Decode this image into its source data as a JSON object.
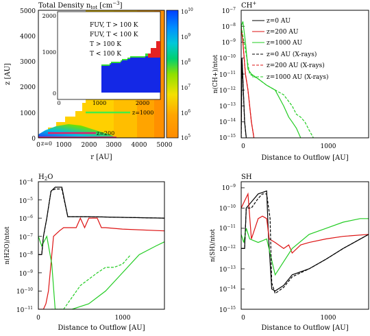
{
  "chart_data": [
    {
      "type": "heatmap",
      "title": "Total Density n",
      "title_sub": "tot",
      "title_unit": " [cm",
      "title_exp": "−3",
      "title_end": "]",
      "xlabel": "r [AU]",
      "ylabel": "z [AU]",
      "xlim": [
        0,
        5000
      ],
      "ylim": [
        0,
        5000
      ],
      "xticks": [
        "0",
        "1000",
        "2000",
        "3000",
        "4000",
        "5000"
      ],
      "yticks": [
        "0",
        "1000",
        "2000",
        "3000",
        "4000",
        "5000"
      ],
      "colorbar": {
        "scale": "log",
        "range": [
          100000,
          10000000000
        ],
        "ticks": [
          "10",
          "10",
          "10",
          "10",
          "10",
          "10"
        ],
        "tick_exps": [
          "5",
          "6",
          "7",
          "8",
          "9",
          "10"
        ]
      },
      "annotations": [
        "z=1000",
        "z=200",
        "z=0"
      ],
      "inset": {
        "xticks": [
          "0",
          "1000",
          "2000"
        ],
        "yticks": [
          "0",
          "1000",
          "2000"
        ],
        "legend": [
          {
            "label": "FUV, T > 100 K",
            "color": "#e02020"
          },
          {
            "label": "FUV, T < 100 K",
            "color": "#33dd33"
          },
          {
            "label": "T > 100 K",
            "color": "#f08a00"
          },
          {
            "label": "T < 100 K",
            "color": "#1020e0"
          }
        ]
      },
      "grid": false
    },
    {
      "type": "line",
      "title": "CH",
      "title_sup": "+",
      "xlabel": "Distance to Outflow [AU]",
      "ylabel": "n(CH+)/ntot",
      "yscale": "log",
      "xlim": [
        0,
        1500
      ],
      "ylim": [
        1e-15,
        1e-07
      ],
      "xticks": [
        "0",
        "1000"
      ],
      "yticks": [
        "10",
        "10",
        "10",
        "10",
        "10",
        "10",
        "10",
        "10",
        "10"
      ],
      "ytick_exps": [
        "−7",
        "−8",
        "−9",
        "−10",
        "−11",
        "−12",
        "−13",
        "−14",
        "−15"
      ],
      "legend_position": "top-right",
      "series": [
        {
          "name": "z=0 AU",
          "color": "#000000",
          "dash": false,
          "x": [
            0,
            10,
            20,
            40,
            60
          ],
          "y": [
            1e-15,
            1e-10,
            5e-12,
            1e-14,
            1e-15
          ]
        },
        {
          "name": "z=200 AU",
          "color": "#dd1111",
          "dash": false,
          "x": [
            0,
            20,
            50,
            80,
            120,
            150
          ],
          "y": [
            1e-08,
            1e-09,
            1e-11,
            1e-12,
            1e-14,
            1e-15
          ]
        },
        {
          "name": "z=1000 AU",
          "color": "#22cc22",
          "dash": false,
          "x": [
            0,
            20,
            50,
            80,
            120,
            200,
            300,
            400,
            500,
            560,
            600,
            650,
            700
          ],
          "y": [
            1e-08,
            2e-08,
            1e-09,
            2e-11,
            1e-11,
            5e-12,
            2e-12,
            1e-12,
            1e-13,
            2e-14,
            1e-14,
            4e-15,
            1e-15
          ]
        },
        {
          "name": "z=0 AU (X-rays)",
          "color": "#000000",
          "dash": true,
          "x": [
            0,
            10,
            20,
            40,
            60
          ],
          "y": [
            1e-15,
            8e-11,
            4e-12,
            1e-14,
            1e-15
          ]
        },
        {
          "name": "z=200 AU (X-rays)",
          "color": "#dd1111",
          "dash": true,
          "x": [
            0,
            20,
            50,
            80,
            120,
            150
          ],
          "y": [
            1e-08,
            1e-09,
            1e-11,
            1e-12,
            1e-14,
            1e-15
          ]
        },
        {
          "name": "z=1000 AU (X-rays)",
          "color": "#22cc22",
          "dash": true,
          "x": [
            0,
            100,
            200,
            300,
            400,
            500,
            600,
            650,
            700,
            750,
            800,
            850
          ],
          "y": [
            1e-08,
            1e-11,
            5e-12,
            2e-12,
            1e-12,
            5e-13,
            1e-13,
            3e-14,
            2e-14,
            1e-14,
            3e-15,
            1e-15
          ]
        }
      ],
      "grid": false
    },
    {
      "type": "line",
      "title": "H",
      "title_sub": "2",
      "title_end": "O",
      "xlabel": "Distance to Outflow [AU]",
      "ylabel": "n(H2O)/ntot",
      "yscale": "log",
      "xlim": [
        0,
        1500
      ],
      "ylim": [
        1e-11,
        0.0001
      ],
      "xticks": [
        "0",
        "1000"
      ],
      "yticks": [
        "10",
        "10",
        "10",
        "10",
        "10",
        "10",
        "10",
        "10"
      ],
      "ytick_exps": [
        "−4",
        "−5",
        "−6",
        "−7",
        "−8",
        "−9",
        "−10",
        "−11"
      ],
      "series": [
        {
          "name": "z=0 AU",
          "color": "#000000",
          "dash": false,
          "x": [
            0,
            40,
            60,
            100,
            150,
            200,
            280,
            350,
            600,
            1000,
            1500
          ],
          "y": [
            1e-08,
            1e-08,
            1e-07,
            1e-06,
            3e-05,
            5e-05,
            5e-05,
            1.2e-06,
            1.2e-06,
            1.1e-06,
            1e-06
          ]
        },
        {
          "name": "z=200 AU",
          "color": "#dd1111",
          "dash": false,
          "x": [
            0,
            60,
            90,
            120,
            180,
            250,
            300,
            350,
            450,
            500,
            550,
            600,
            700,
            750,
            800,
            1000,
            1500
          ],
          "y": [
            1e-11,
            1e-11,
            2e-11,
            1e-10,
            1e-07,
            2e-07,
            3e-07,
            3e-07,
            3e-07,
            1e-06,
            3e-07,
            1e-06,
            1e-06,
            3e-07,
            3e-07,
            2.5e-07,
            2e-07
          ]
        },
        {
          "name": "z=1000 AU",
          "color": "#22cc22",
          "dash": false,
          "x": [
            0,
            40,
            100,
            160,
            200,
            400,
            600,
            800,
            1000,
            1200,
            1400,
            1500
          ],
          "y": [
            1e-07,
            3e-08,
            1e-07,
            3e-09,
            1e-11,
            1e-11,
            2e-11,
            1e-10,
            1e-09,
            1e-08,
            3e-08,
            5e-08
          ]
        },
        {
          "name": "z=0 AU (X-rays)",
          "color": "#000000",
          "dash": true,
          "x": [
            0,
            40,
            60,
            100,
            150,
            200,
            280,
            350,
            600,
            1000,
            1500
          ],
          "y": [
            1e-08,
            1e-08,
            1e-07,
            1e-06,
            3e-05,
            4e-05,
            4e-05,
            1.2e-06,
            1.2e-06,
            1.1e-06,
            1e-06
          ]
        },
        {
          "name": "z=1000 AU (X-rays)",
          "color": "#22cc22",
          "dash": true,
          "x": [
            150,
            300,
            500,
            700,
            800,
            900,
            1000,
            1100
          ],
          "y": [
            1e-11,
            1e-11,
            2e-10,
            1e-09,
            2e-09,
            2e-09,
            3e-09,
            1e-08
          ]
        }
      ],
      "grid": false
    },
    {
      "type": "line",
      "title": "SH",
      "xlabel": "Distance to Outflow [AU]",
      "ylabel": "n(SH)/ntot",
      "yscale": "log",
      "xlim": [
        0,
        1500
      ],
      "ylim": [
        1e-15,
        2e-09
      ],
      "xticks": [
        "0",
        "1000"
      ],
      "yticks": [
        "10",
        "10",
        "10",
        "10",
        "10",
        "10",
        "10"
      ],
      "ytick_exps": [
        "−9",
        "−10",
        "−11",
        "−12",
        "−13",
        "−14",
        "−15"
      ],
      "series": [
        {
          "name": "z=0 AU",
          "color": "#000000",
          "dash": false,
          "x": [
            0,
            40,
            60,
            120,
            200,
            300,
            320,
            360,
            400,
            500,
            600,
            800,
            1000,
            1200,
            1500
          ],
          "y": [
            1e-12,
            1e-12,
            1e-10,
            2e-10,
            5e-10,
            7e-10,
            5e-12,
            1e-14,
            8e-15,
            1.5e-14,
            5e-14,
            1e-13,
            3e-13,
            1e-12,
            5e-12
          ]
        },
        {
          "name": "z=200 AU",
          "color": "#dd1111",
          "dash": false,
          "x": [
            0,
            80,
            120,
            200,
            250,
            300,
            330,
            400,
            500,
            560,
            600,
            700,
            800,
            1000,
            1200,
            1500
          ],
          "y": [
            1e-10,
            5e-10,
            3e-12,
            3e-11,
            4e-11,
            3e-11,
            3e-12,
            2e-12,
            1e-12,
            1.5e-12,
            6e-13,
            1.5e-12,
            2e-12,
            3e-12,
            4e-12,
            5e-12
          ]
        },
        {
          "name": "z=1000 AU",
          "color": "#22cc22",
          "dash": false,
          "x": [
            0,
            30,
            60,
            100,
            200,
            300,
            400,
            600,
            800,
            1000,
            1200,
            1400,
            1500
          ],
          "y": [
            5e-12,
            2e-12,
            1e-11,
            3e-12,
            2e-12,
            3e-12,
            5e-14,
            1e-12,
            5e-12,
            1e-11,
            2e-11,
            3e-11,
            3e-11
          ]
        },
        {
          "name": "z=0 AU (X-rays)",
          "color": "#000000",
          "dash": true,
          "x": [
            0,
            40,
            60,
            120,
            200,
            250,
            300,
            340,
            360,
            400,
            500,
            600,
            800,
            1000,
            1200,
            1500
          ],
          "y": [
            1e-12,
            1e-12,
            1e-10,
            1e-10,
            3e-10,
            5e-10,
            5e-10,
            3e-11,
            2e-14,
            6e-15,
            1.2e-14,
            4e-14,
            1e-13,
            3e-13,
            1e-12,
            5e-12
          ]
        }
      ],
      "grid": false
    }
  ]
}
